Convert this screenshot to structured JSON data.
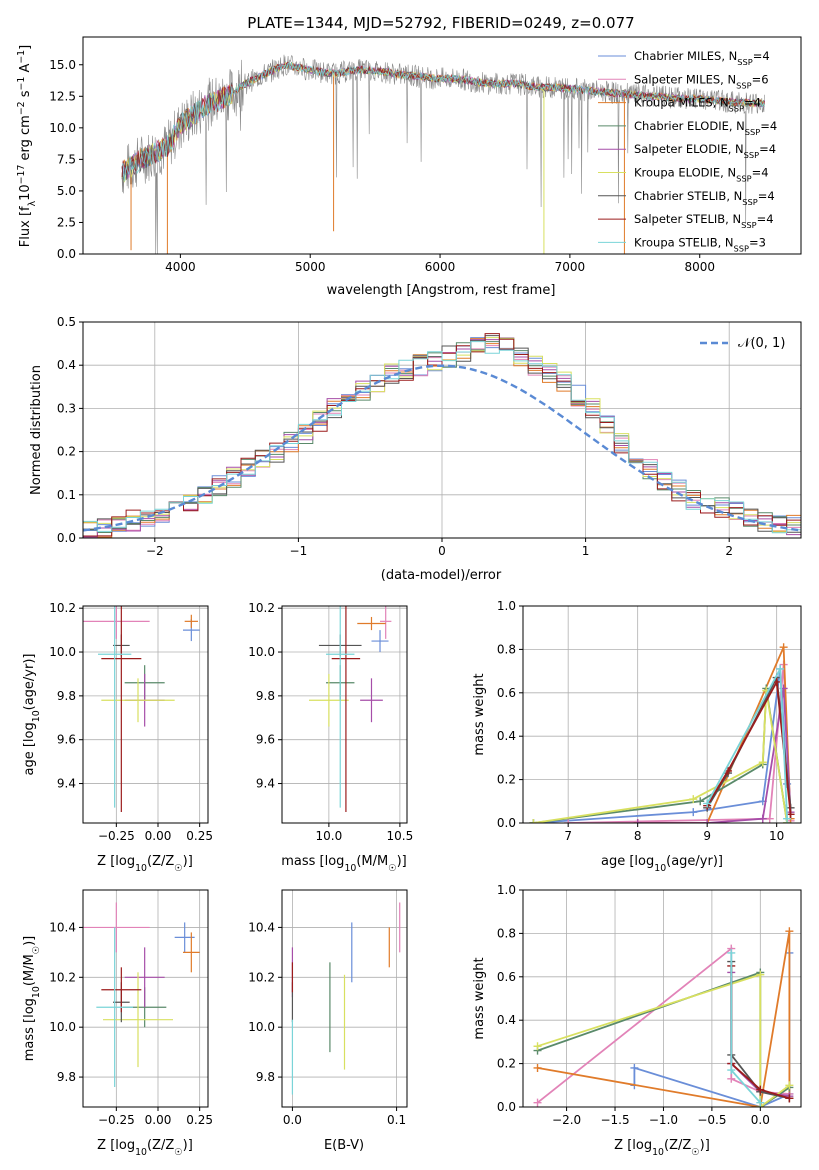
{
  "figure_title": "PLATE=1344, MJD=52792, FIBERID=0249, z=0.077",
  "series_names": [
    "Chabrier MILES, N_SSP=4",
    "Salpeter MILES, N_SSP=6",
    "Kroupa MILES, N_SSP=4",
    "Chabrier ELODIE, N_SSP=4",
    "Salpeter ELODIE, N_SSP=4",
    "Kroupa ELODIE, N_SSP=4",
    "Chabrier STELIB, N_SSP=4",
    "Salpeter STELIB, N_SSP=4",
    "Kroupa STELIB, N_SSP=3"
  ],
  "series_colors": [
    "#6a8ed8",
    "#e283b8",
    "#e07b2a",
    "#5a8a6a",
    "#a64ea8",
    "#d8e060",
    "#555555",
    "#9b1c1c",
    "#7ad4d8"
  ],
  "chart_data": [
    {
      "type": "line",
      "title": "PLATE=1344, MJD=52792, FIBERID=0249, z=0.077",
      "xlabel": "wavelength [Angstrom, rest frame]",
      "ylabel_main": "Flux [f",
      "ylabel_sub": "λ",
      "ylabel_rest": "10",
      "ylabel_exp": "−17",
      "ylabel_tail": " erg cm",
      "ylabel_exp2": "−2",
      "ylabel_tail2": " s",
      "ylabel_exp3": "−1",
      "ylabel_tail3": " A",
      "ylabel_exp4": "−1",
      "ylabel_end": "]",
      "xlim": [
        3250,
        8780
      ],
      "ylim": [
        0,
        17.2
      ],
      "xticks": [
        "4000",
        "5000",
        "6000",
        "7000",
        "8000"
      ],
      "xtick_values": [
        4000,
        5000,
        6000,
        7000,
        8000
      ],
      "yticks": [
        "0.0",
        "2.5",
        "5.0",
        "7.5",
        "10.0",
        "12.5",
        "15.0"
      ],
      "ytick_values": [
        0,
        2.5,
        5,
        7.5,
        10,
        12.5,
        15
      ],
      "grid": false,
      "legend_placement": "right",
      "legend_entries": [
        {
          "name": "Chabrier MILES, N",
          "sub": "SSP",
          "rest": "=4"
        },
        {
          "name": "Salpeter MILES, N",
          "sub": "SSP",
          "rest": "=6"
        },
        {
          "name": "Kroupa MILES, N",
          "sub": "SSP",
          "rest": "=4"
        },
        {
          "name": "Chabrier ELODIE, N",
          "sub": "SSP",
          "rest": "=4"
        },
        {
          "name": "Salpeter ELODIE, N",
          "sub": "SSP",
          "rest": "=4"
        },
        {
          "name": "Kroupa ELODIE, N",
          "sub": "SSP",
          "rest": "=4"
        },
        {
          "name": "Chabrier STELIB, N",
          "sub": "SSP",
          "rest": "=4"
        },
        {
          "name": "Salpeter STELIB, N",
          "sub": "SSP",
          "rest": "=4"
        },
        {
          "name": "Kroupa STELIB, N",
          "sub": "SSP",
          "rest": "=3"
        }
      ],
      "data_anchor": {
        "wavelength": [
          3550,
          3600,
          3700,
          3800,
          3900,
          4000,
          4100,
          4200,
          4300,
          4400,
          4500,
          4600,
          4700,
          4800,
          4900,
          5000,
          5100,
          5200,
          5300,
          5400,
          5500,
          5600,
          5700,
          5800,
          5900,
          6000,
          6100,
          6200,
          6300,
          6400,
          6500,
          6600,
          6700,
          6800,
          6900,
          7000,
          7100,
          7200,
          7300,
          7400,
          7500,
          7600,
          7700,
          7800,
          7900,
          8000,
          8100,
          8200,
          8300,
          8400,
          8500
        ],
        "flux": [
          6.5,
          6.8,
          7.5,
          8.0,
          8.5,
          10.2,
          11.0,
          11.8,
          12.2,
          12.8,
          13.5,
          14.0,
          14.5,
          15.0,
          14.8,
          14.6,
          14.4,
          14.3,
          14.5,
          14.6,
          14.5,
          14.4,
          14.2,
          14.1,
          14.0,
          13.9,
          13.9,
          13.8,
          13.6,
          13.5,
          13.5,
          13.5,
          13.3,
          13.2,
          13.2,
          13.1,
          13.0,
          12.9,
          12.8,
          12.7,
          12.6,
          12.5,
          12.5,
          12.4,
          12.3,
          12.3,
          12.2,
          12.1,
          12.0,
          12.0,
          11.9
        ]
      }
    },
    {
      "type": "line",
      "xlabel": "(data-model)/error",
      "ylabel": "Normed distribution",
      "xlim": [
        -2.5,
        2.5
      ],
      "ylim": [
        0,
        0.5
      ],
      "xticks": [
        "−2",
        "−1",
        "0",
        "1",
        "2"
      ],
      "xtick_values": [
        -2,
        -1,
        0,
        1,
        2
      ],
      "yticks": [
        "0.0",
        "0.1",
        "0.2",
        "0.3",
        "0.4",
        "0.5"
      ],
      "ytick_values": [
        0,
        0.1,
        0.2,
        0.3,
        0.4,
        0.5
      ],
      "grid": true,
      "legend_placement": "top-right",
      "legend_label": "𝒩(0, 1)",
      "bins": [
        -2.5,
        -2.4,
        -2.3,
        -2.2,
        -2.1,
        -2.0,
        -1.9,
        -1.8,
        -1.7,
        -1.6,
        -1.5,
        -1.4,
        -1.3,
        -1.2,
        -1.1,
        -1.0,
        -0.9,
        -0.8,
        -0.7,
        -0.6,
        -0.5,
        -0.4,
        -0.3,
        -0.2,
        -0.1,
        0.0,
        0.1,
        0.2,
        0.3,
        0.4,
        0.5,
        0.6,
        0.7,
        0.8,
        0.9,
        1.0,
        1.1,
        1.2,
        1.3,
        1.4,
        1.5,
        1.6,
        1.7,
        1.8,
        1.9,
        2.0,
        2.1,
        2.2,
        2.3,
        2.4,
        2.5
      ],
      "hist_mean": [
        0.02,
        0.025,
        0.03,
        0.04,
        0.045,
        0.06,
        0.07,
        0.08,
        0.1,
        0.12,
        0.14,
        0.16,
        0.18,
        0.2,
        0.22,
        0.24,
        0.27,
        0.3,
        0.32,
        0.34,
        0.36,
        0.38,
        0.39,
        0.4,
        0.41,
        0.42,
        0.43,
        0.44,
        0.45,
        0.44,
        0.42,
        0.4,
        0.38,
        0.36,
        0.33,
        0.3,
        0.26,
        0.22,
        0.19,
        0.16,
        0.13,
        0.11,
        0.09,
        0.08,
        0.07,
        0.06,
        0.05,
        0.04,
        0.035,
        0.03
      ]
    },
    {
      "type": "scatter",
      "xlabel": "Z [log",
      "xlabel_sub": "10",
      "xlabel_rest": "(Z/Z",
      "xlabel_sub2": "☉",
      "xlabel_end": ")]",
      "ylabel": "age  [log",
      "ylabel_sub": "10",
      "ylabel_rest": "(age/yr)]",
      "xlim": [
        -0.45,
        0.3
      ],
      "ylim": [
        9.22,
        10.21
      ],
      "xticks": [
        "−0.25",
        "0.00",
        "0.25"
      ],
      "xtick_values": [
        -0.25,
        0,
        0.25
      ],
      "yticks": [
        "9.4",
        "9.6",
        "9.8",
        "10.0",
        "10.2"
      ],
      "ytick_values": [
        9.4,
        9.6,
        9.8,
        10.0,
        10.2
      ],
      "grid": true,
      "points": [
        {
          "x": 0.2,
          "y": 10.1,
          "xerr": 0.05,
          "yerr": 0.05
        },
        {
          "x": -0.25,
          "y": 10.14,
          "xerr": 0.2,
          "yerr": 0.08
        },
        {
          "x": 0.2,
          "y": 10.14,
          "xerr": 0.04,
          "yerr": 0.03
        },
        {
          "x": -0.08,
          "y": 9.86,
          "xerr": 0.12,
          "yerr": 0.08
        },
        {
          "x": -0.08,
          "y": 9.78,
          "xerr": 0.12,
          "yerr": 0.12
        },
        {
          "x": -0.12,
          "y": 9.78,
          "xerr": 0.22,
          "yerr": 0.1
        },
        {
          "x": -0.22,
          "y": 10.03,
          "xerr": 0.05,
          "yerr": 0.05
        },
        {
          "x": -0.22,
          "y": 9.97,
          "xerr": 0.12,
          "yerr": 0.7
        },
        {
          "x": -0.26,
          "y": 9.99,
          "xerr": 0.1,
          "yerr": 0.7
        }
      ]
    },
    {
      "type": "scatter",
      "xlabel": "mass [log",
      "xlabel_sub": "10",
      "xlabel_rest": "(M/M",
      "xlabel_sub2": "☉",
      "xlabel_end": ")]",
      "xlim": [
        9.67,
        10.55
      ],
      "ylim": [
        9.22,
        10.21
      ],
      "xticks": [
        "10.0",
        "10.5"
      ],
      "xtick_values": [
        10.0,
        10.5
      ],
      "yticks": [
        "9.4",
        "9.6",
        "9.8",
        "10.0",
        "10.2"
      ],
      "ytick_values": [
        9.4,
        9.6,
        9.8,
        10.0,
        10.2
      ],
      "grid": true,
      "points": [
        {
          "x": 10.36,
          "y": 10.05,
          "xerr": 0.06,
          "yerr": 0.05
        },
        {
          "x": 10.4,
          "y": 10.14,
          "xerr": 0.04,
          "yerr": 0.08
        },
        {
          "x": 10.3,
          "y": 10.13,
          "xerr": 0.1,
          "yerr": 0.03
        },
        {
          "x": 10.08,
          "y": 9.86,
          "xerr": 0.1,
          "yerr": 0.08
        },
        {
          "x": 10.3,
          "y": 9.78,
          "xerr": 0.08,
          "yerr": 0.1
        },
        {
          "x": 10.0,
          "y": 9.78,
          "xerr": 0.14,
          "yerr": 0.12
        },
        {
          "x": 10.08,
          "y": 10.03,
          "xerr": 0.15,
          "yerr": 0.05
        },
        {
          "x": 10.12,
          "y": 9.97,
          "xerr": 0.1,
          "yerr": 0.7
        },
        {
          "x": 10.08,
          "y": 9.99,
          "xerr": 0.1,
          "yerr": 0.7
        }
      ]
    },
    {
      "type": "line",
      "xlabel": "age  [log",
      "xlabel_sub": "10",
      "xlabel_rest": "(age/yr)]",
      "ylabel": "mass weight",
      "xlim": [
        6.35,
        10.35
      ],
      "ylim": [
        0,
        1
      ],
      "xticks": [
        "7",
        "8",
        "9",
        "10"
      ],
      "xtick_values": [
        7,
        8,
        9,
        10
      ],
      "yticks": [
        "0.0",
        "0.2",
        "0.4",
        "0.6",
        "0.8",
        "1.0"
      ],
      "ytick_values": [
        0,
        0.2,
        0.4,
        0.6,
        0.8,
        1.0
      ],
      "grid": true,
      "series": [
        {
          "x": [
            6.5,
            8.8,
            9.8,
            10.05,
            10.15
          ],
          "y": [
            0.0,
            0.05,
            0.1,
            0.71,
            0.18
          ]
        },
        {
          "x": [
            7.0,
            9.9,
            10.1,
            10.2
          ],
          "y": [
            0.0,
            0.02,
            0.73,
            0.01
          ]
        },
        {
          "x": [
            8.0,
            9.0,
            10.1,
            10.2
          ],
          "y": [
            0.0,
            0.0,
            0.81,
            0.02
          ]
        },
        {
          "x": [
            6.5,
            8.9,
            9.8,
            9.85,
            10.15
          ],
          "y": [
            0.0,
            0.1,
            0.27,
            0.62,
            0.0
          ]
        },
        {
          "x": [
            8.0,
            9.0,
            9.8,
            10.1,
            10.2
          ],
          "y": [
            0.0,
            0.0,
            0.02,
            0.62,
            0.05
          ]
        },
        {
          "x": [
            6.5,
            8.8,
            9.8,
            9.85,
            10.15
          ],
          "y": [
            0.0,
            0.11,
            0.28,
            0.61,
            0.0
          ]
        },
        {
          "x": [
            9.0,
            9.3,
            10.0,
            10.2
          ],
          "y": [
            0.07,
            0.23,
            0.67,
            0.07
          ]
        },
        {
          "x": [
            9.0,
            9.3,
            10.0,
            10.2
          ],
          "y": [
            0.08,
            0.24,
            0.65,
            0.04
          ]
        },
        {
          "x": [
            9.0,
            10.05,
            10.15
          ],
          "y": [
            0.09,
            0.71,
            0.02
          ]
        }
      ]
    },
    {
      "type": "scatter",
      "xlabel": "Z [log",
      "xlabel_sub": "10",
      "xlabel_rest": "(Z/Z",
      "xlabel_sub2": "☉",
      "xlabel_end": ")]",
      "ylabel": "mass [log",
      "ylabel_sub": "10",
      "ylabel_rest": "(M/M",
      "ylabel_sub2": "☉",
      "ylabel_end": ")]",
      "xlim": [
        -0.45,
        0.3
      ],
      "ylim": [
        9.68,
        10.55
      ],
      "xticks": [
        "−0.25",
        "0.00",
        "0.25"
      ],
      "xtick_values": [
        -0.25,
        0,
        0.25
      ],
      "yticks": [
        "9.8",
        "10.0",
        "10.2",
        "10.4"
      ],
      "ytick_values": [
        9.8,
        10.0,
        10.2,
        10.4
      ],
      "grid": true,
      "points": [
        {
          "x": 0.16,
          "y": 10.36,
          "xerr": 0.06,
          "yerr": 0.06
        },
        {
          "x": -0.25,
          "y": 10.4,
          "xerr": 0.2,
          "yerr": 0.1
        },
        {
          "x": 0.2,
          "y": 10.3,
          "xerr": 0.05,
          "yerr": 0.08
        },
        {
          "x": -0.08,
          "y": 10.08,
          "xerr": 0.13,
          "yerr": 0.08
        },
        {
          "x": -0.08,
          "y": 10.2,
          "xerr": 0.12,
          "yerr": 0.12
        },
        {
          "x": -0.12,
          "y": 10.03,
          "xerr": 0.21,
          "yerr": 0.19
        },
        {
          "x": -0.22,
          "y": 10.1,
          "xerr": 0.05,
          "yerr": 0.08
        },
        {
          "x": -0.22,
          "y": 10.15,
          "xerr": 0.12,
          "yerr": 0.09
        },
        {
          "x": -0.26,
          "y": 10.08,
          "xerr": 0.11,
          "yerr": 0.32
        }
      ]
    },
    {
      "type": "scatter",
      "xlabel": "E(B-V)",
      "xlim": [
        -0.01,
        0.11
      ],
      "ylim": [
        9.68,
        10.55
      ],
      "xticks": [
        "0.0",
        "0.1"
      ],
      "xtick_values": [
        0.0,
        0.1
      ],
      "yticks": [
        "9.8",
        "10.0",
        "10.2",
        "10.4"
      ],
      "ytick_values": [
        9.8,
        10.0,
        10.2,
        10.4
      ],
      "grid": true,
      "points": [
        {
          "x": 0.057,
          "y": 10.3,
          "xerr": 0,
          "yerr": 0.12
        },
        {
          "x": 0.103,
          "y": 10.4,
          "xerr": 0,
          "yerr": 0.1
        },
        {
          "x": 0.093,
          "y": 10.32,
          "xerr": 0,
          "yerr": 0.08
        },
        {
          "x": 0.036,
          "y": 10.08,
          "xerr": 0,
          "yerr": 0.18
        },
        {
          "x": 0.0,
          "y": 10.22,
          "xerr": 0,
          "yerr": 0.1
        },
        {
          "x": 0.05,
          "y": 10.02,
          "xerr": 0,
          "yerr": 0.19
        },
        {
          "x": 0.0,
          "y": 10.1,
          "xerr": 0,
          "yerr": 0.08
        },
        {
          "x": 0.0,
          "y": 10.2,
          "xerr": 0,
          "yerr": 0.06
        },
        {
          "x": 0.0,
          "y": 9.88,
          "xerr": 0,
          "yerr": 0.15
        }
      ]
    },
    {
      "type": "line",
      "xlabel": "Z [log",
      "xlabel_sub": "10",
      "xlabel_rest": "(Z/Z",
      "xlabel_sub2": "☉",
      "xlabel_end": ")]",
      "ylabel": "mass weight",
      "xlim": [
        -2.45,
        0.42
      ],
      "ylim": [
        0,
        1
      ],
      "xticks": [
        "−2.0",
        "−1.5",
        "−1.0",
        "−0.5",
        "0.0"
      ],
      "xtick_values": [
        -2.0,
        -1.5,
        -1.0,
        -0.5,
        0.0
      ],
      "yticks": [
        "0.0",
        "0.2",
        "0.4",
        "0.6",
        "0.8",
        "1.0"
      ],
      "ytick_values": [
        0,
        0.2,
        0.4,
        0.6,
        0.8,
        1.0
      ],
      "grid": true,
      "series": [
        {
          "x": [
            -1.3,
            -1.3,
            0.0,
            0.3,
            0.3
          ],
          "y": [
            0.1,
            0.18,
            0.0,
            0.06,
            0.71
          ]
        },
        {
          "x": [
            -2.3,
            -0.3,
            -0.3,
            0.0,
            0.3
          ],
          "y": [
            0.02,
            0.73,
            0.13,
            0.07,
            0.06
          ]
        },
        {
          "x": [
            -2.3,
            0.0,
            0.3,
            0.3
          ],
          "y": [
            0.18,
            0.0,
            0.81,
            0.04
          ]
        },
        {
          "x": [
            -2.3,
            0.0,
            0.0,
            0.3
          ],
          "y": [
            0.26,
            0.62,
            0.0,
            0.09
          ]
        },
        {
          "x": [
            -0.3,
            -0.3,
            0.0,
            0.3
          ],
          "y": [
            0.62,
            0.2,
            0.07,
            0.05
          ]
        },
        {
          "x": [
            -2.3,
            0.0,
            0.0,
            0.3
          ],
          "y": [
            0.28,
            0.61,
            0.0,
            0.1
          ]
        },
        {
          "x": [
            -0.3,
            -0.3,
            0.0,
            0.3
          ],
          "y": [
            0.67,
            0.24,
            0.07,
            0.04
          ]
        },
        {
          "x": [
            -0.3,
            -0.3,
            0.0,
            0.3
          ],
          "y": [
            0.65,
            0.2,
            0.08,
            0.04
          ]
        },
        {
          "x": [
            -0.3,
            -0.3,
            0.0
          ],
          "y": [
            0.71,
            0.17,
            0.02
          ]
        }
      ]
    }
  ]
}
